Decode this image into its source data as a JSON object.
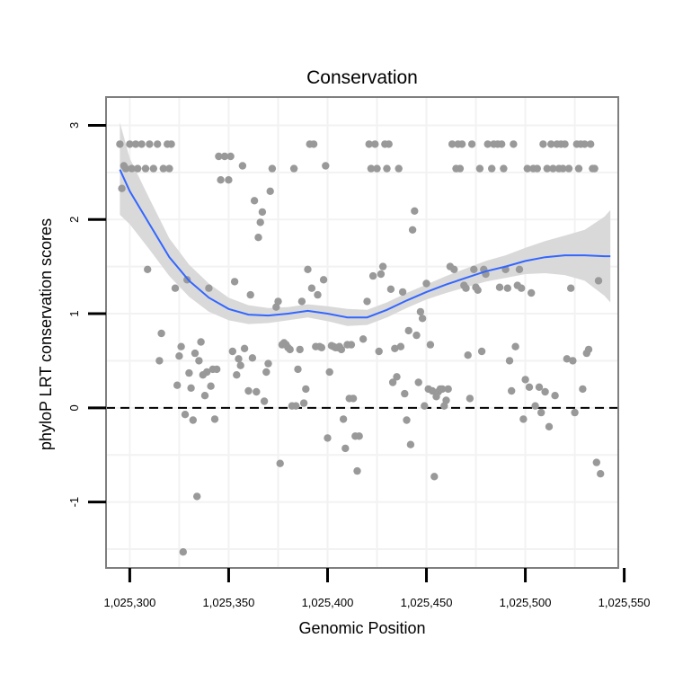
{
  "chart_data": {
    "type": "scatter",
    "title": "Conservation",
    "xlabel": "Genomic Position",
    "ylabel": "phyloP LRT conservation scores",
    "xlim": [
      1025288,
      1025547
    ],
    "ylim": [
      -1.7,
      3.3
    ],
    "xticks": [
      1025300,
      1025350,
      1025400,
      1025450,
      1025500,
      1025550
    ],
    "xtick_labels": [
      "1,025,300",
      "1,025,350",
      "1,025,400",
      "1,025,450",
      "1,025,500",
      "1,025,550"
    ],
    "yticks": [
      -1,
      0,
      1,
      2,
      3
    ],
    "ytick_labels": [
      "-1",
      "0",
      "1",
      "2",
      "3"
    ],
    "reference_line": {
      "y": 0,
      "style": "dashed"
    },
    "colors": {
      "points": "#999999",
      "smooth": "#3366ff",
      "ribbon": "#d9d9d9",
      "panel_border": "#7f7f7f",
      "grid": "#f2f2f2"
    },
    "smooth": {
      "x": [
        1025295,
        1025300,
        1025310,
        1025320,
        1025330,
        1025340,
        1025350,
        1025360,
        1025370,
        1025380,
        1025390,
        1025400,
        1025410,
        1025420,
        1025430,
        1025440,
        1025450,
        1025460,
        1025470,
        1025480,
        1025490,
        1025500,
        1025510,
        1025520,
        1025530,
        1025540,
        1025543
      ],
      "y": [
        2.53,
        2.3,
        1.95,
        1.6,
        1.35,
        1.17,
        1.05,
        0.99,
        0.98,
        1.0,
        1.03,
        1.0,
        0.96,
        0.96,
        1.04,
        1.14,
        1.23,
        1.31,
        1.38,
        1.45,
        1.5,
        1.56,
        1.6,
        1.62,
        1.62,
        1.61,
        1.61
      ],
      "lower": [
        2.05,
        1.95,
        1.68,
        1.4,
        1.18,
        1.02,
        0.93,
        0.89,
        0.9,
        0.93,
        0.96,
        0.92,
        0.87,
        0.88,
        0.96,
        1.06,
        1.15,
        1.22,
        1.28,
        1.34,
        1.38,
        1.42,
        1.43,
        1.41,
        1.35,
        1.19,
        1.12
      ],
      "upper": [
        3.03,
        2.65,
        2.22,
        1.8,
        1.52,
        1.32,
        1.17,
        1.09,
        1.06,
        1.07,
        1.1,
        1.08,
        1.05,
        1.04,
        1.12,
        1.22,
        1.31,
        1.4,
        1.48,
        1.56,
        1.62,
        1.7,
        1.77,
        1.83,
        1.89,
        2.03,
        2.1
      ]
    },
    "points": [
      [
        1025295,
        2.8
      ],
      [
        1025296,
        2.33
      ],
      [
        1025297,
        2.57
      ],
      [
        1025298,
        2.54
      ],
      [
        1025300,
        2.8
      ],
      [
        1025301,
        2.54
      ],
      [
        1025303,
        2.8
      ],
      [
        1025304,
        2.54
      ],
      [
        1025306,
        2.8
      ],
      [
        1025308,
        2.54
      ],
      [
        1025309,
        1.47
      ],
      [
        1025310,
        2.8
      ],
      [
        1025312,
        2.54
      ],
      [
        1025314,
        2.8
      ],
      [
        1025315,
        0.5
      ],
      [
        1025316,
        0.79
      ],
      [
        1025317,
        2.54
      ],
      [
        1025319,
        2.8
      ],
      [
        1025320,
        2.54
      ],
      [
        1025321,
        2.8
      ],
      [
        1025323,
        1.27
      ],
      [
        1025324,
        0.24
      ],
      [
        1025325,
        0.55
      ],
      [
        1025326,
        0.65
      ],
      [
        1025327,
        -1.53
      ],
      [
        1025328,
        -0.07
      ],
      [
        1025329,
        1.36
      ],
      [
        1025330,
        0.37
      ],
      [
        1025331,
        0.21
      ],
      [
        1025332,
        -0.13
      ],
      [
        1025333,
        0.58
      ],
      [
        1025334,
        -0.94
      ],
      [
        1025335,
        0.5
      ],
      [
        1025336,
        0.7
      ],
      [
        1025337,
        0.35
      ],
      [
        1025338,
        0.13
      ],
      [
        1025339,
        0.38
      ],
      [
        1025340,
        1.27
      ],
      [
        1025341,
        0.23
      ],
      [
        1025342,
        0.41
      ],
      [
        1025343,
        -0.12
      ],
      [
        1025344,
        0.41
      ],
      [
        1025345,
        2.67
      ],
      [
        1025346,
        2.42
      ],
      [
        1025348,
        2.67
      ],
      [
        1025350,
        2.42
      ],
      [
        1025351,
        2.67
      ],
      [
        1025352,
        0.6
      ],
      [
        1025353,
        1.34
      ],
      [
        1025354,
        0.35
      ],
      [
        1025355,
        0.52
      ],
      [
        1025356,
        0.45
      ],
      [
        1025357,
        2.57
      ],
      [
        1025358,
        0.63
      ],
      [
        1025360,
        0.18
      ],
      [
        1025361,
        1.2
      ],
      [
        1025362,
        0.53
      ],
      [
        1025363,
        2.2
      ],
      [
        1025364,
        0.17
      ],
      [
        1025365,
        1.81
      ],
      [
        1025366,
        1.97
      ],
      [
        1025367,
        2.08
      ],
      [
        1025368,
        0.07
      ],
      [
        1025369,
        0.38
      ],
      [
        1025370,
        0.47
      ],
      [
        1025371,
        2.3
      ],
      [
        1025372,
        2.54
      ],
      [
        1025374,
        1.07
      ],
      [
        1025375,
        1.13
      ],
      [
        1025376,
        -0.59
      ],
      [
        1025377,
        0.67
      ],
      [
        1025378,
        0.69
      ],
      [
        1025379,
        0.67
      ],
      [
        1025380,
        0.64
      ],
      [
        1025381,
        0.62
      ],
      [
        1025382,
        0.02
      ],
      [
        1025383,
        2.54
      ],
      [
        1025384,
        0.02
      ],
      [
        1025385,
        0.41
      ],
      [
        1025386,
        0.62
      ],
      [
        1025387,
        1.13
      ],
      [
        1025388,
        0.05
      ],
      [
        1025389,
        0.2
      ],
      [
        1025390,
        1.47
      ],
      [
        1025391,
        2.8
      ],
      [
        1025392,
        1.27
      ],
      [
        1025393,
        2.8
      ],
      [
        1025394,
        0.65
      ],
      [
        1025395,
        1.2
      ],
      [
        1025396,
        0.65
      ],
      [
        1025397,
        0.64
      ],
      [
        1025398,
        1.36
      ],
      [
        1025399,
        2.57
      ],
      [
        1025400,
        -0.32
      ],
      [
        1025401,
        0.38
      ],
      [
        1025402,
        0.66
      ],
      [
        1025403,
        0.65
      ],
      [
        1025404,
        0.64
      ],
      [
        1025405,
        0.64
      ],
      [
        1025406,
        0.65
      ],
      [
        1025407,
        0.62
      ],
      [
        1025408,
        -0.12
      ],
      [
        1025409,
        -0.43
      ],
      [
        1025410,
        0.67
      ],
      [
        1025411,
        0.1
      ],
      [
        1025412,
        0.67
      ],
      [
        1025413,
        0.1
      ],
      [
        1025414,
        -0.3
      ],
      [
        1025415,
        -0.67
      ],
      [
        1025416,
        -0.3
      ],
      [
        1025418,
        0.73
      ],
      [
        1025420,
        1.13
      ],
      [
        1025421,
        2.8
      ],
      [
        1025422,
        2.54
      ],
      [
        1025423,
        1.4
      ],
      [
        1025424,
        2.8
      ],
      [
        1025425,
        2.54
      ],
      [
        1025426,
        0.6
      ],
      [
        1025427,
        1.42
      ],
      [
        1025428,
        1.5
      ],
      [
        1025429,
        2.8
      ],
      [
        1025430,
        2.54
      ],
      [
        1025431,
        2.8
      ],
      [
        1025432,
        1.26
      ],
      [
        1025433,
        0.27
      ],
      [
        1025434,
        0.63
      ],
      [
        1025435,
        0.33
      ],
      [
        1025436,
        2.54
      ],
      [
        1025437,
        0.65
      ],
      [
        1025438,
        1.23
      ],
      [
        1025439,
        0.15
      ],
      [
        1025440,
        -0.13
      ],
      [
        1025441,
        0.82
      ],
      [
        1025442,
        -0.39
      ],
      [
        1025443,
        1.89
      ],
      [
        1025444,
        2.09
      ],
      [
        1025445,
        0.77
      ],
      [
        1025446,
        0.27
      ],
      [
        1025447,
        1.02
      ],
      [
        1025448,
        0.95
      ],
      [
        1025449,
        0.02
      ],
      [
        1025450,
        1.32
      ],
      [
        1025451,
        0.2
      ],
      [
        1025452,
        0.67
      ],
      [
        1025453,
        0.18
      ],
      [
        1025454,
        -0.73
      ],
      [
        1025455,
        0.12
      ],
      [
        1025456,
        0.17
      ],
      [
        1025457,
        0.2
      ],
      [
        1025458,
        0.2
      ],
      [
        1025459,
        0.02
      ],
      [
        1025460,
        0.08
      ],
      [
        1025461,
        0.2
      ],
      [
        1025462,
        1.5
      ],
      [
        1025463,
        2.8
      ],
      [
        1025464,
        1.47
      ],
      [
        1025465,
        2.54
      ],
      [
        1025466,
        2.8
      ],
      [
        1025467,
        2.54
      ],
      [
        1025468,
        2.8
      ],
      [
        1025469,
        1.3
      ],
      [
        1025470,
        1.27
      ],
      [
        1025471,
        0.56
      ],
      [
        1025472,
        0.1
      ],
      [
        1025473,
        2.8
      ],
      [
        1025474,
        1.47
      ],
      [
        1025475,
        1.28
      ],
      [
        1025476,
        1.25
      ],
      [
        1025477,
        2.54
      ],
      [
        1025478,
        0.6
      ],
      [
        1025479,
        1.47
      ],
      [
        1025480,
        1.42
      ],
      [
        1025481,
        2.8
      ],
      [
        1025483,
        2.54
      ],
      [
        1025484,
        2.8
      ],
      [
        1025486,
        2.8
      ],
      [
        1025487,
        1.28
      ],
      [
        1025488,
        2.8
      ],
      [
        1025489,
        2.54
      ],
      [
        1025490,
        1.47
      ],
      [
        1025491,
        1.27
      ],
      [
        1025492,
        0.5
      ],
      [
        1025493,
        0.18
      ],
      [
        1025494,
        2.8
      ],
      [
        1025495,
        0.65
      ],
      [
        1025496,
        1.3
      ],
      [
        1025497,
        1.47
      ],
      [
        1025498,
        1.27
      ],
      [
        1025499,
        -0.12
      ],
      [
        1025500,
        0.3
      ],
      [
        1025501,
        2.54
      ],
      [
        1025502,
        0.22
      ],
      [
        1025503,
        1.22
      ],
      [
        1025504,
        2.54
      ],
      [
        1025505,
        0.02
      ],
      [
        1025506,
        2.54
      ],
      [
        1025507,
        0.22
      ],
      [
        1025508,
        -0.05
      ],
      [
        1025509,
        2.8
      ],
      [
        1025510,
        0.17
      ],
      [
        1025511,
        2.54
      ],
      [
        1025512,
        -0.2
      ],
      [
        1025513,
        2.8
      ],
      [
        1025514,
        2.54
      ],
      [
        1025515,
        0.13
      ],
      [
        1025516,
        2.8
      ],
      [
        1025517,
        2.54
      ],
      [
        1025518,
        2.8
      ],
      [
        1025519,
        2.54
      ],
      [
        1025520,
        2.8
      ],
      [
        1025521,
        0.52
      ],
      [
        1025522,
        2.54
      ],
      [
        1025523,
        1.27
      ],
      [
        1025524,
        0.5
      ],
      [
        1025525,
        -0.05
      ],
      [
        1025526,
        2.8
      ],
      [
        1025527,
        2.54
      ],
      [
        1025528,
        2.8
      ],
      [
        1025529,
        0.2
      ],
      [
        1025530,
        2.8
      ],
      [
        1025531,
        0.58
      ],
      [
        1025532,
        0.62
      ],
      [
        1025533,
        2.8
      ],
      [
        1025534,
        2.54
      ],
      [
        1025535,
        2.54
      ],
      [
        1025536,
        -0.58
      ],
      [
        1025537,
        1.35
      ],
      [
        1025538,
        -0.7
      ]
    ]
  }
}
